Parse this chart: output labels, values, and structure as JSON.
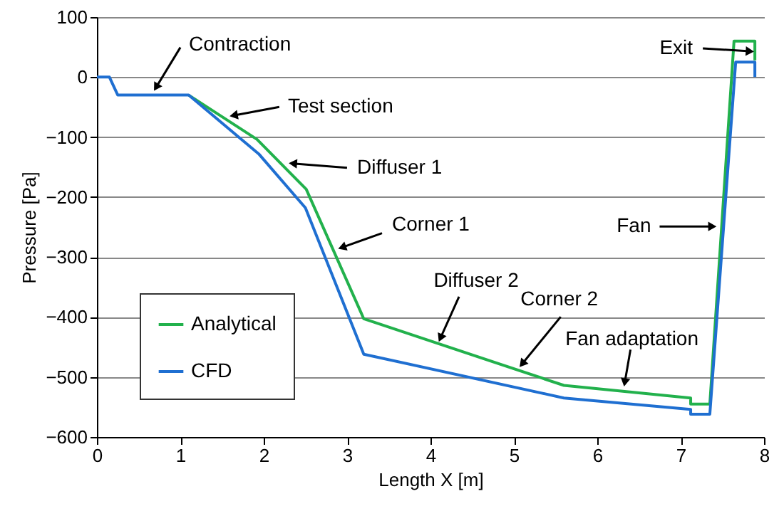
{
  "chart_data": {
    "type": "line",
    "xlabel": "Length X [m]",
    "ylabel": "Pressure [Pa]",
    "xlim": [
      0,
      8
    ],
    "xticks": [
      0,
      1,
      2,
      3,
      4,
      5,
      6,
      7,
      8
    ],
    "ylim": [
      -600,
      100
    ],
    "yticks": [
      -600,
      -500,
      -400,
      -300,
      -200,
      -100,
      0,
      100
    ],
    "grid": "y",
    "legend": "bottom left",
    "marker": "none",
    "line_style": "solid",
    "series": [
      {
        "name": "Analytical",
        "color": "#22b14c",
        "x": [
          1.1,
          1.92,
          2.51,
          3.2,
          5.6,
          7.12,
          7.12,
          7.35,
          7.64,
          7.89,
          7.89
        ],
        "values": [
          -30,
          -104,
          -187,
          -403,
          -514,
          -535,
          -545,
          -545,
          60,
          60,
          28
        ]
      },
      {
        "name": "CFD",
        "color": "#1f6fd1",
        "x": [
          0,
          0.15,
          0.25,
          1.1,
          1.94,
          2.5,
          3.2,
          5.6,
          7.12,
          7.12,
          7.35,
          7.66,
          7.89,
          7.89
        ],
        "values": [
          0,
          0,
          -30,
          -30,
          -128,
          -218,
          -462,
          -535,
          -554,
          -562,
          -562,
          25,
          25,
          0
        ]
      }
    ],
    "annotations": [
      {
        "text": "Contraction",
        "x": 0.71,
        "y": -17
      },
      {
        "text": "Test section",
        "x": 1.64,
        "y": -64
      },
      {
        "text": "Diffuser 1",
        "x": 2.35,
        "y": -144
      },
      {
        "text": "Corner 1",
        "x": 2.94,
        "y": -284
      },
      {
        "text": "Diffuser 2",
        "x": 4.12,
        "y": -435
      },
      {
        "text": "Corner 2",
        "x": 5.1,
        "y": -478
      },
      {
        "text": "Fan adaptation",
        "x": 6.33,
        "y": -509
      },
      {
        "text": "Fan",
        "x": 7.38,
        "y": -249
      },
      {
        "text": "Exit",
        "x": 7.83,
        "y": 43
      }
    ]
  }
}
